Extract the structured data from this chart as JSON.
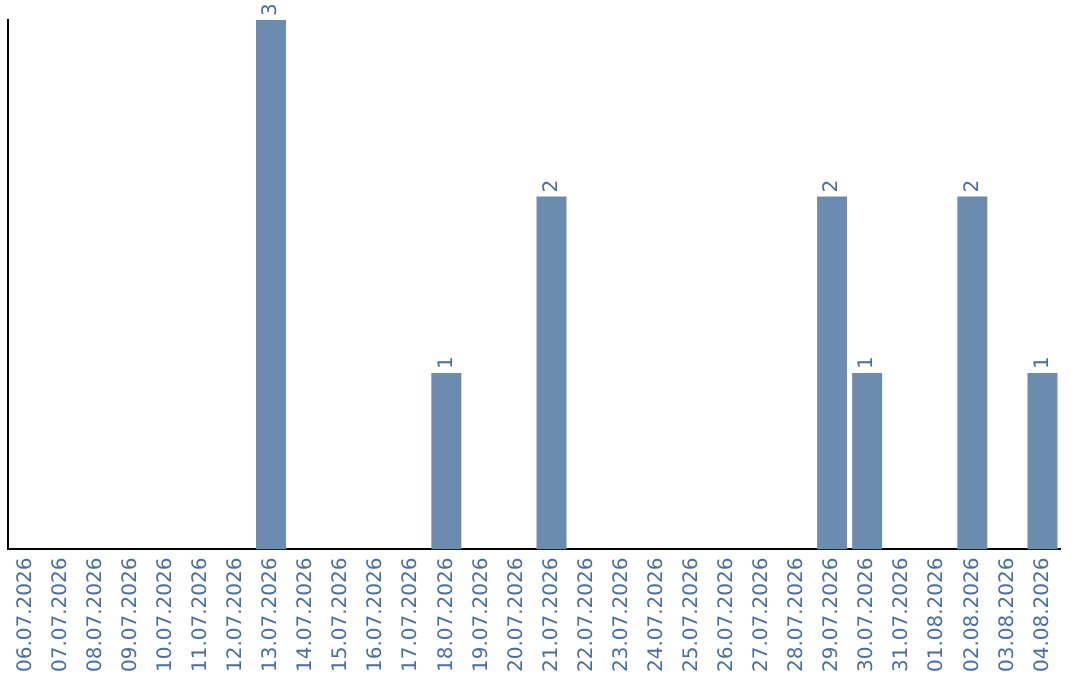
{
  "chart_data": {
    "type": "bar",
    "categories": [
      "06.07.2026",
      "07.07.2026",
      "08.07.2026",
      "09.07.2026",
      "10.07.2026",
      "11.07.2026",
      "12.07.2026",
      "13.07.2026",
      "14.07.2026",
      "15.07.2026",
      "16.07.2026",
      "17.07.2026",
      "18.07.2026",
      "19.07.2026",
      "20.07.2026",
      "21.07.2026",
      "22.07.2026",
      "23.07.2026",
      "24.07.2026",
      "25.07.2026",
      "26.07.2026",
      "27.07.2026",
      "28.07.2026",
      "29.07.2026",
      "30.07.2026",
      "31.07.2026",
      "01.08.2026",
      "02.08.2026",
      "03.08.2026",
      "04.08.2026"
    ],
    "values": [
      0,
      0,
      0,
      0,
      0,
      0,
      0,
      3,
      0,
      0,
      0,
      0,
      1,
      0,
      0,
      2,
      0,
      0,
      0,
      0,
      0,
      0,
      0,
      2,
      1,
      0,
      0,
      2,
      0,
      1
    ],
    "value_labels": [
      null,
      null,
      null,
      null,
      null,
      null,
      null,
      "3",
      null,
      null,
      null,
      null,
      "1",
      null,
      null,
      "2",
      null,
      null,
      null,
      null,
      null,
      null,
      null,
      "2",
      "1",
      null,
      null,
      "2",
      null,
      "1"
    ],
    "color": "#6b8cae",
    "grid": false,
    "legend": false,
    "tick_labels": "x"
  }
}
